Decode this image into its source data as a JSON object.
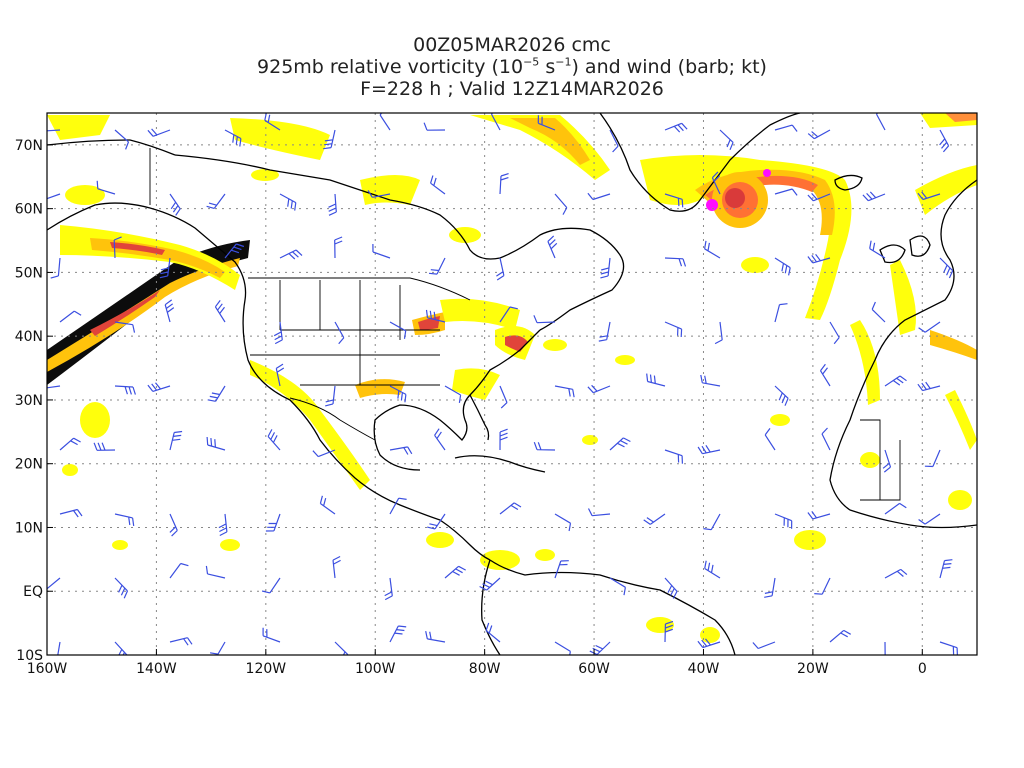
{
  "title": {
    "line1": "00Z05MAR2026 cmc",
    "line2_pre": "925mb relative vorticity (10",
    "line2_exp1": "−5",
    "line2_mid": " s",
    "line2_exp2": "−1",
    "line2_post": ") and wind (barb; kt)",
    "line3": "F=228 h ; Valid 12Z14MAR2026"
  },
  "axes": {
    "lat_labels": [
      "70N",
      "60N",
      "50N",
      "40N",
      "30N",
      "20N",
      "10N",
      "EQ",
      "10S"
    ],
    "lon_labels": [
      "160W",
      "140W",
      "120W",
      "100W",
      "80W",
      "60W",
      "40W",
      "20W",
      "0"
    ],
    "lon_range": [
      -160,
      10
    ],
    "lat_range": [
      -10,
      75
    ]
  },
  "colors": {
    "vort_low": "#ffff00",
    "vort_mid": "#ffc000",
    "vort_high": "#ff6a2a",
    "vort_peak": "#d83030",
    "vort_max": "#ff00ff",
    "barb": "#3b4fe0",
    "coast": "#000000",
    "grid": "#888888"
  }
}
